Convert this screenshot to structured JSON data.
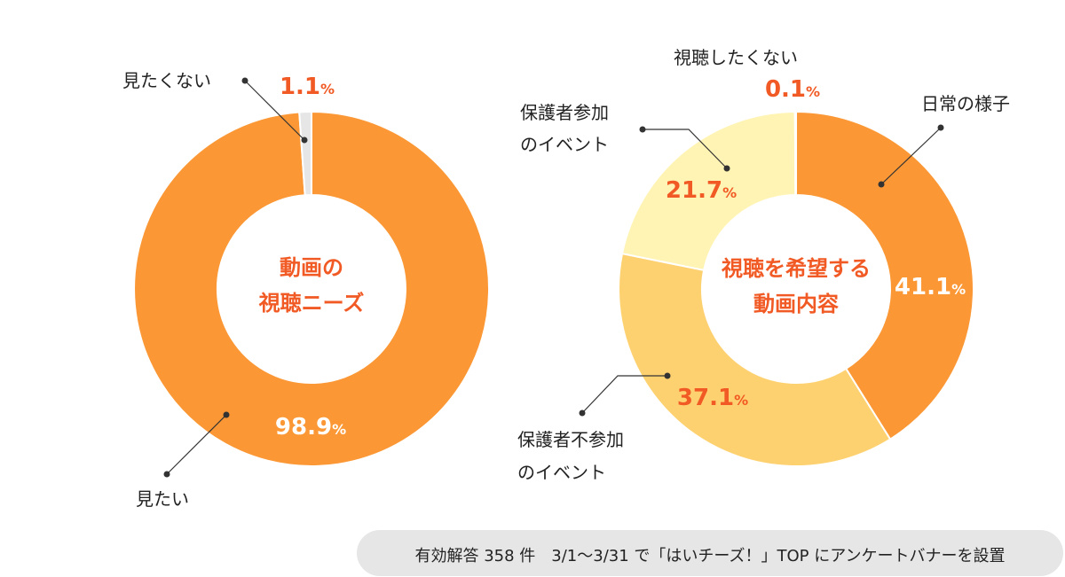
{
  "colors": {
    "orange": "#fb9734",
    "light_orange": "#fed170",
    "pale_yellow": "#fff4b3",
    "light_gray": "#e6e6e6",
    "accent_text": "#f15a24",
    "white": "#ffffff",
    "footnote_bg": "#e6e6e6"
  },
  "footnote": "有効解答 358 件　3/1〜3/31 で「はいチーズ！」TOP にアンケートバナーを設置",
  "chart_data": [
    {
      "type": "pie",
      "variant": "donut",
      "center_title": [
        "動画の",
        "視聴ニーズ"
      ],
      "slices": [
        {
          "label": "見たい",
          "value": 98.9,
          "value_text": "98.9",
          "unit": "%",
          "color": "#fb9734"
        },
        {
          "label": "見たくない",
          "value": 1.1,
          "value_text": "1.1",
          "unit": "%",
          "color": "#e6e6e6"
        }
      ]
    },
    {
      "type": "pie",
      "variant": "donut",
      "center_title": [
        "視聴を希望する",
        "動画内容"
      ],
      "slices": [
        {
          "label": "日常の様子",
          "value": 41.1,
          "value_text": "41.1",
          "unit": "%",
          "color": "#fb9734"
        },
        {
          "label": "保護者不参加\nのイベント",
          "value": 37.1,
          "value_text": "37.1",
          "unit": "%",
          "color": "#fed170"
        },
        {
          "label": "保護者参加\nのイベント",
          "value": 21.7,
          "value_text": "21.7",
          "unit": "%",
          "color": "#fff4b3"
        },
        {
          "label": "視聴したくない",
          "value": 0.1,
          "value_text": "0.1",
          "unit": "%",
          "color": "#e6e6e6"
        }
      ]
    }
  ]
}
